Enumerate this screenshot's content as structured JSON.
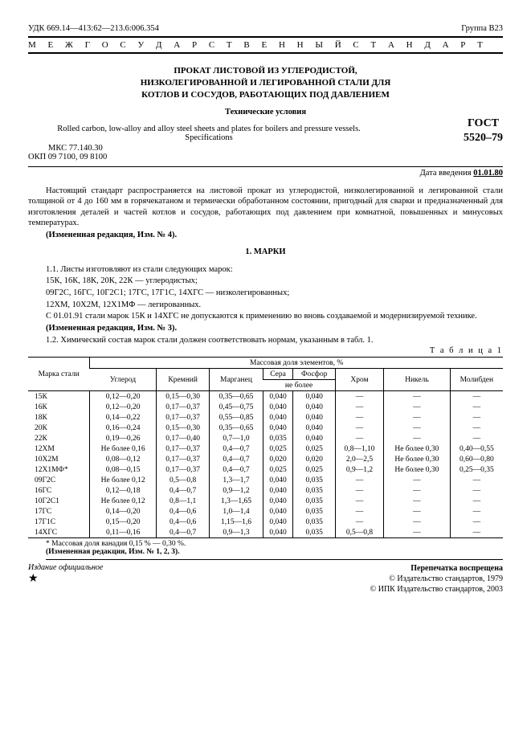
{
  "top": {
    "udc": "УДК  669.14—413:62—213.6:006.354",
    "group": "Группа В23"
  },
  "banner": "М Е Ж Г О С У Д А Р С Т В Е Н Н Ы Й   С Т А Н Д А Р Т",
  "title": {
    "ru1": "ПРОКАТ ЛИСТОВОЙ ИЗ УГЛЕРОДИСТОЙ,",
    "ru2": "НИЗКОЛЕГИРОВАННОЙ И ЛЕГИРОВАННОЙ СТАЛИ ДЛЯ",
    "ru3": "КОТЛОВ И СОСУДОВ, РАБОТАЮЩИХ ПОД ДАВЛЕНИЕМ",
    "sub": "Технические условия",
    "gost1": "ГОСТ",
    "gost2": "5520–79",
    "en": "Rolled carbon, low-alloy and alloy steel sheets and plates for boilers and pressure vessels. Specifications",
    "mkc": "МКС 77.140.30",
    "okp": "ОКП 09 7100, 09 8100"
  },
  "date_intro_label": "Дата введения ",
  "date_intro_val": "01.01.80",
  "para1": "Настоящий стандарт распространяется на листовой прокат из углеродистой, низколегированной и легированной стали толщиной от 4 до 160 мм в горячекатаном и термически обработанном состоянии, пригодный для сварки и предназначенный для изготовления деталей и частей котлов и сосудов, работающих под давлением при комнатной, повышенных и минусовых температурах.",
  "para1_note": "(Измененная редакция, Изм. № 4).",
  "section1": "1. МАРКИ",
  "p11": "1.1. Листы изготовляют из стали следующих марок:",
  "p11a": "15К, 16К, 18К, 20К, 22К — углеродистых;",
  "p11b": "09Г2С, 16ГС, 10Г2С1; 17ГС, 17Г1С, 14ХГС — низколегированных;",
  "p11c": "12ХМ, 10Х2М, 12Х1МФ — легированных.",
  "p11d": "С 01.01.91 стали марок 15К и 14ХГС не допускаются к применению во вновь создаваемой и модернизируемой технике.",
  "p11_note": "(Измененная редакция, Изм. № 3).",
  "p12": "1.2. Химический состав марок стали должен соответствовать нормам, указанным в табл. 1.",
  "table_label": "Т а б л и ц а 1",
  "table": {
    "head_grade": "Марка стали",
    "head_mass": "Массовая доля элементов, %",
    "cols": [
      "Углерод",
      "Кремний",
      "Марганец",
      "Сера",
      "Фосфор",
      "Хром",
      "Никель",
      "Молибден"
    ],
    "sub_ne": "не более",
    "rows": [
      {
        "g": "15К",
        "c": "0,12—0,20",
        "si": "0,15—0,30",
        "mn": "0,35—0,65",
        "s": "0,040",
        "p": "0,040",
        "cr": "—",
        "ni": "—",
        "mo": "—"
      },
      {
        "g": "16К",
        "c": "0,12—0,20",
        "si": "0,17—0,37",
        "mn": "0,45—0,75",
        "s": "0,040",
        "p": "0,040",
        "cr": "—",
        "ni": "—",
        "mo": "—"
      },
      {
        "g": "18К",
        "c": "0,14—0,22",
        "si": "0,17—0,37",
        "mn": "0,55—0,85",
        "s": "0,040",
        "p": "0,040",
        "cr": "—",
        "ni": "—",
        "mo": "—"
      },
      {
        "g": "20К",
        "c": "0,16—0,24",
        "si": "0,15—0,30",
        "mn": "0,35—0,65",
        "s": "0,040",
        "p": "0,040",
        "cr": "—",
        "ni": "—",
        "mo": "—"
      },
      {
        "g": "22К",
        "c": "0,19—0,26",
        "si": "0,17—0,40",
        "mn": "0,7—1,0",
        "s": "0,035",
        "p": "0,040",
        "cr": "—",
        "ni": "—",
        "mo": "—"
      },
      {
        "g": "12ХМ",
        "c": "Не более 0,16",
        "si": "0,17—0,37",
        "mn": "0,4—0,7",
        "s": "0,025",
        "p": "0,025",
        "cr": "0,8—1,10",
        "ni": "Не более 0,30",
        "mo": "0,40—0,55"
      },
      {
        "g": "10Х2М",
        "c": "0,08—0,12",
        "si": "0,17—0,37",
        "mn": "0,4—0,7",
        "s": "0,020",
        "p": "0,020",
        "cr": "2,0—2,5",
        "ni": "Не более 0,30",
        "mo": "0,60—0,80"
      },
      {
        "g": "12Х1МФ*",
        "c": "0,08—0,15",
        "si": "0,17—0,37",
        "mn": "0,4—0,7",
        "s": "0,025",
        "p": "0,025",
        "cr": "0,9—1,2",
        "ni": "Не более 0,30",
        "mo": "0,25—0,35"
      },
      {
        "g": "09Г2С",
        "c": "Не более 0,12",
        "si": "0,5—0,8",
        "mn": "1,3—1,7",
        "s": "0,040",
        "p": "0,035",
        "cr": "—",
        "ni": "—",
        "mo": "—"
      },
      {
        "g": "16ГС",
        "c": "0,12—0,18",
        "si": "0,4—0,7",
        "mn": "0,9—1,2",
        "s": "0,040",
        "p": "0,035",
        "cr": "—",
        "ni": "—",
        "mo": "—"
      },
      {
        "g": "10Г2С1",
        "c": "Не более 0,12",
        "si": "0,8—1,1",
        "mn": "1,3—1,65",
        "s": "0,040",
        "p": "0,035",
        "cr": "—",
        "ni": "—",
        "mo": "—"
      },
      {
        "g": "17ГС",
        "c": "0,14—0,20",
        "si": "0,4—0,6",
        "mn": "1,0—1,4",
        "s": "0,040",
        "p": "0,035",
        "cr": "—",
        "ni": "—",
        "mo": "—"
      },
      {
        "g": "17Г1С",
        "c": "0,15—0,20",
        "si": "0,4—0,6",
        "mn": "1,15—1,6",
        "s": "0,040",
        "p": "0,035",
        "cr": "—",
        "ni": "—",
        "mo": "—"
      },
      {
        "g": "14ХГС",
        "c": "0,11—0,16",
        "si": "0,4—0,7",
        "mn": "0,9—1,3",
        "s": "0,040",
        "p": "0,035",
        "cr": "0,5—0,8",
        "ni": "—",
        "mo": "—"
      }
    ]
  },
  "foot_star": "* Массовая доля ванадия 0,15 % — 0,30 %.",
  "foot_izm": "(Измененная редакция, Изм. № 1, 2, 3).",
  "bottom": {
    "left": "Издание официальное",
    "right1": "Перепечатка воспрещена",
    "right2": "© Издательство стандартов, 1979",
    "right3": "© ИПК Издательство стандартов, 2003"
  }
}
